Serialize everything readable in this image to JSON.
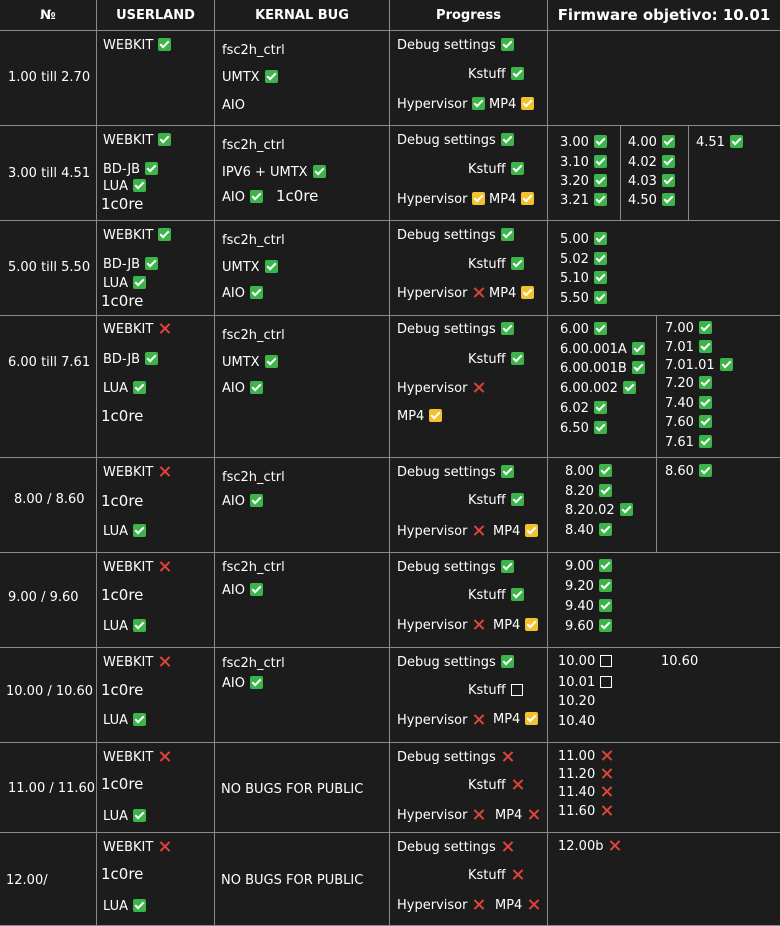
{
  "header": {
    "col_num": "№",
    "col_userland": "USERLAND",
    "col_kernel": "KERNAL BUG",
    "col_progress": "Progress",
    "col_firmware": "Firmware objetivo: 10.01"
  },
  "icons": {
    "ok": "green-check-icon",
    "partial": "yellow-check-icon",
    "no": "red-x-icon",
    "pending": "empty-box-icon"
  },
  "colors": {
    "green": "#3bb54a",
    "yellow": "#f2c12e",
    "red": "#e0443a",
    "background": "#1c1c1c"
  },
  "rows": [
    {
      "range": "1.00 till 2.70",
      "userland": [
        "WEBKIT"
      ],
      "kernel": [
        "fsc2h_ctrl",
        "UMTX",
        "AIO"
      ],
      "progress": {
        "debug": "Debug settings",
        "kstuff": "Kstuff",
        "hypervisor": "Hypervisor",
        "mp4": "MP4"
      },
      "firmware": []
    },
    {
      "range": "3.00 till 4.51",
      "userland": [
        "WEBKIT",
        "BD-JB",
        "LUA",
        "1c0re"
      ],
      "kernel": [
        "fsc2h_ctrl",
        "IPV6 + UMTX",
        "AIO",
        "1c0re"
      ],
      "progress": {
        "debug": "Debug settings",
        "kstuff": "Kstuff",
        "hypervisor": "Hypervisor",
        "mp4": "MP4"
      },
      "firmware": [
        "3.00",
        "3.10",
        "3.20",
        "3.21",
        "4.00",
        "4.02",
        "4.03",
        "4.50",
        "4.51"
      ]
    },
    {
      "range": "5.00 till 5.50",
      "userland": [
        "WEBKIT",
        "BD-JB",
        "LUA",
        "1c0re"
      ],
      "kernel": [
        "fsc2h_ctrl",
        "UMTX",
        "AIO"
      ],
      "progress": {
        "debug": "Debug settings",
        "kstuff": "Kstuff",
        "hypervisor": "Hypervisor",
        "mp4": "MP4"
      },
      "firmware": [
        "5.00",
        "5.02",
        "5.10",
        "5.50"
      ]
    },
    {
      "range": "6.00 till 7.61",
      "userland": [
        "WEBKIT",
        "BD-JB",
        "LUA",
        "1c0re"
      ],
      "kernel": [
        "fsc2h_ctrl",
        "UMTX",
        "AIO"
      ],
      "progress": {
        "debug": "Debug settings",
        "kstuff": "Kstuff",
        "hypervisor": "Hypervisor",
        "mp4": "MP4"
      },
      "firmware": [
        "6.00",
        "6.00.001A",
        "6.00.001B",
        "6.00.002",
        "6.02",
        "6.50",
        "7.00",
        "7.01",
        "7.01.01",
        "7.20",
        "7.40",
        "7.60",
        "7.61"
      ]
    },
    {
      "range": "8.00 / 8.60",
      "userland": [
        "WEBKIT",
        "1c0re",
        "LUA"
      ],
      "kernel": [
        "fsc2h_ctrl",
        "AIO"
      ],
      "progress": {
        "debug": "Debug settings",
        "kstuff": "Kstuff",
        "hypervisor": "Hypervisor",
        "mp4": "MP4"
      },
      "firmware": [
        "8.00",
        "8.20",
        "8.20.02",
        "8.40",
        "8.60"
      ]
    },
    {
      "range": "9.00 / 9.60",
      "userland": [
        "WEBKIT",
        "1c0re",
        "LUA"
      ],
      "kernel": [
        "fsc2h_ctrl",
        "AIO"
      ],
      "progress": {
        "debug": "Debug settings",
        "kstuff": "Kstuff",
        "hypervisor": "Hypervisor",
        "mp4": "MP4"
      },
      "firmware": [
        "9.00",
        "9.20",
        "9.40",
        "9.60"
      ]
    },
    {
      "range": "10.00 / 10.60",
      "userland": [
        "WEBKIT",
        "1c0re",
        "LUA"
      ],
      "kernel": [
        "fsc2h_ctrl",
        "AIO"
      ],
      "progress": {
        "debug": "Debug settings",
        "kstuff": "Kstuff",
        "hypervisor": "Hypervisor",
        "mp4": "MP4"
      },
      "firmware": [
        "10.00",
        "10.01",
        "10.20",
        "10.40",
        "10.60"
      ]
    },
    {
      "range": "11.00 / 11.60",
      "userland": [
        "WEBKIT",
        "1c0re",
        "LUA"
      ],
      "kernel": [
        "NO BUGS FOR PUBLIC"
      ],
      "progress": {
        "debug": "Debug settings",
        "kstuff": "Kstuff",
        "hypervisor": "Hypervisor",
        "mp4": "MP4"
      },
      "firmware": [
        "11.00",
        "11.20",
        "11.40",
        "11.60"
      ]
    },
    {
      "range": "12.00/",
      "userland": [
        "WEBKIT",
        "1c0re",
        "LUA"
      ],
      "kernel": [
        "NO BUGS FOR PUBLIC"
      ],
      "progress": {
        "debug": "Debug settings",
        "kstuff": "Kstuff",
        "hypervisor": "Hypervisor",
        "mp4": "MP4"
      },
      "firmware": [
        "12.00b"
      ]
    }
  ]
}
